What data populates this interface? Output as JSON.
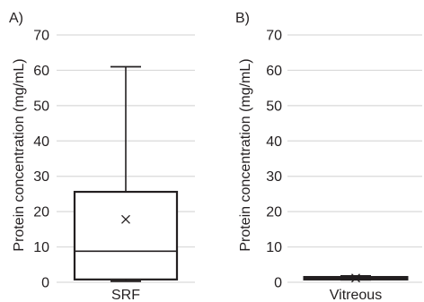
{
  "colors": {
    "grid": "#d9d9d9",
    "box_stroke": "#231f20",
    "text": "#231f20"
  },
  "chart_data": [
    {
      "type": "box",
      "panel_label": "A)",
      "ylabel": "Protein concentration (mg/mL)",
      "ylim": [
        0,
        70
      ],
      "yticks": [
        0,
        10,
        20,
        30,
        40,
        50,
        60,
        70
      ],
      "grid": "horizontal",
      "categories": [
        "SRF"
      ],
      "boxes": [
        {
          "category": "SRF",
          "min": 0.3,
          "q1": 0.8,
          "median": 8.8,
          "q3": 25.6,
          "max": 61,
          "mean": 17.8
        }
      ]
    },
    {
      "type": "box",
      "panel_label": "B)",
      "ylabel": "Protein concentration (mg/mL)",
      "ylim": [
        0,
        70
      ],
      "yticks": [
        0,
        10,
        20,
        30,
        40,
        50,
        60,
        70
      ],
      "grid": "horizontal",
      "categories": [
        "Vitreous"
      ],
      "boxes": [
        {
          "category": "Vitreous",
          "min": 0.7,
          "q1": 0.9,
          "median": 1.1,
          "q3": 1.4,
          "max": 1.8,
          "mean": 1.2
        }
      ]
    }
  ]
}
